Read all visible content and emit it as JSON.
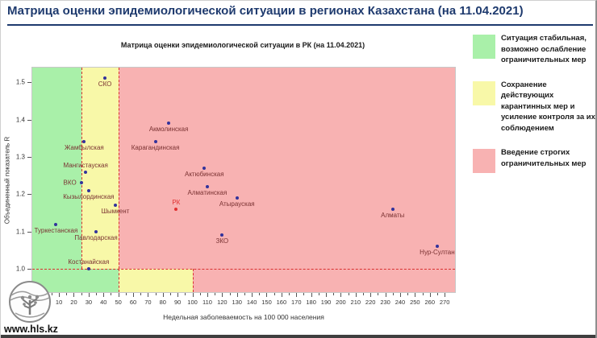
{
  "header": {
    "title": "Матрица оценки эпидемиологической ситуации в регионах Казахстана (на 11.04.2021)"
  },
  "footer": {
    "url": "www.hls.kz",
    "logo": "tree-in-circle-logo"
  },
  "legend": {
    "items": [
      {
        "color": "#a9f0a9",
        "text": "Ситуация стабильная,\nвозможно ослабление\nограничительных мер"
      },
      {
        "color": "#f8f8a8",
        "text": "Сохранение действующих\nкарантинных мер и\nусиление контроля за их\nсоблюдением"
      },
      {
        "color": "#f8b2b2",
        "text": "Введение строгих\nограничительных мер"
      }
    ]
  },
  "chart_data": {
    "type": "scatter",
    "title": "Матрица оценки эпидемиологической ситуации в РК (на 11.04.2021)",
    "xlabel": "Недельная заболеваемость на 100 000 населения",
    "ylabel": "Объединенный показатель R",
    "xlim": [
      -8,
      277
    ],
    "ylim": [
      0.938,
      1.539
    ],
    "x_ticks": {
      "min": 0,
      "max": 270,
      "step": 10,
      "minor_step": 5
    },
    "y_ticks": [
      1.0,
      1.1,
      1.2,
      1.3,
      1.4,
      1.5
    ],
    "threshold_R": 1.0,
    "zones": {
      "above_R1": {
        "green_max_x": 25,
        "yellow_max_x": 50
      },
      "below_R1": {
        "green_max_x": 50,
        "yellow_max_x": 100
      }
    },
    "zone_colors": {
      "green": "#a9f0a9",
      "yellow": "#f8f8a8",
      "pink": "#f8b2b2"
    },
    "colors": {
      "point": "#32329b",
      "highlight_point": "#e03030",
      "label": "#7a3232",
      "highlight_label": "#e03030",
      "threshold_line": "#d93030"
    },
    "points": [
      {
        "name": "СКО",
        "x": 41,
        "r": 1.51,
        "label_pos": "below"
      },
      {
        "name": "Акмолинская",
        "x": 84,
        "r": 1.39,
        "label_pos": "below"
      },
      {
        "name": "Жамбылская",
        "x": 27,
        "r": 1.34,
        "label_pos": "below"
      },
      {
        "name": "Карагандинская",
        "x": 75,
        "r": 1.34,
        "label_pos": "below"
      },
      {
        "name": "Актюбинская",
        "x": 108,
        "r": 1.27,
        "label_pos": "below"
      },
      {
        "name": "Мангистауская",
        "x": 28,
        "r": 1.26,
        "label_pos": "above"
      },
      {
        "name": "ВКО",
        "x": 25,
        "r": 1.23,
        "label_pos": "left"
      },
      {
        "name": "Алматинская",
        "x": 110,
        "r": 1.22,
        "label_pos": "below"
      },
      {
        "name": "Кызылординская",
        "x": 30,
        "r": 1.21,
        "label_pos": "below"
      },
      {
        "name": "Атырауская",
        "x": 130,
        "r": 1.19,
        "label_pos": "below"
      },
      {
        "name": "Шымкент",
        "x": 48,
        "r": 1.17,
        "label_pos": "below"
      },
      {
        "name": "РК",
        "x": 89,
        "r": 1.16,
        "label_pos": "above",
        "highlight": true
      },
      {
        "name": "Алматы",
        "x": 235,
        "r": 1.16,
        "label_pos": "below"
      },
      {
        "name": "Туркестанская",
        "x": 8,
        "r": 1.12,
        "label_pos": "below"
      },
      {
        "name": "Павлодарская",
        "x": 35,
        "r": 1.1,
        "label_pos": "below"
      },
      {
        "name": "ЗКО",
        "x": 120,
        "r": 1.09,
        "label_pos": "below"
      },
      {
        "name": "Нур-Султан",
        "x": 265,
        "r": 1.06,
        "label_pos": "below"
      },
      {
        "name": "Костанайская",
        "x": 30,
        "r": 1.0,
        "label_pos": "above"
      }
    ]
  }
}
